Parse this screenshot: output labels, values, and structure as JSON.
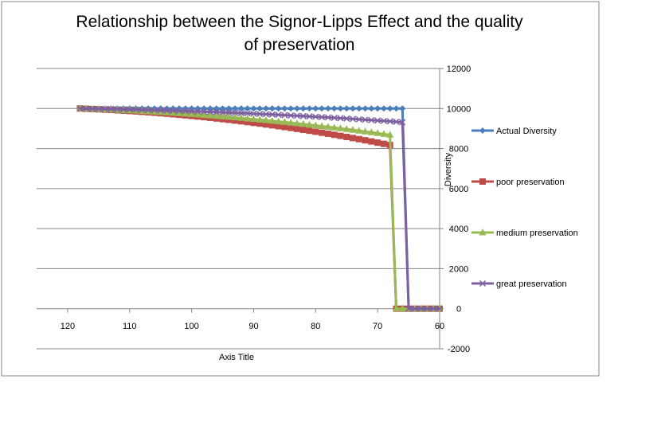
{
  "chart_data": {
    "type": "line",
    "title_line1": "Relationship between the Signor-Lipps Effect and the quality",
    "title_line2": "of preservation",
    "xlabel": "Axis Title",
    "ylabel": "Diversity",
    "xlim": [
      125,
      60
    ],
    "x_reversed": true,
    "ylim": [
      -2000,
      12000
    ],
    "x_ticks": [
      120,
      110,
      100,
      90,
      80,
      70,
      60
    ],
    "y_ticks": [
      -2000,
      0,
      2000,
      4000,
      6000,
      8000,
      10000,
      12000
    ],
    "y_axis_side": "right",
    "grid": "horizontal",
    "legend_position": "right",
    "x": [
      118,
      117,
      116,
      115,
      114,
      113,
      112,
      111,
      110,
      109,
      108,
      107,
      106,
      105,
      104,
      103,
      102,
      101,
      100,
      99,
      98,
      97,
      96,
      95,
      94,
      93,
      92,
      91,
      90,
      89,
      88,
      87,
      86,
      85,
      84,
      83,
      82,
      81,
      80,
      79,
      78,
      77,
      76,
      75,
      74,
      73,
      72,
      71,
      70,
      69,
      68,
      67,
      66,
      65,
      64,
      63,
      62,
      61,
      60
    ],
    "series": [
      {
        "name": "Actual Diversity",
        "color": "#4a7ebb",
        "marker": "diamond",
        "values": [
          10000,
          10000,
          10000,
          10000,
          10000,
          10000,
          10000,
          10000,
          10000,
          10000,
          10000,
          10000,
          10000,
          10000,
          10000,
          10000,
          10000,
          10000,
          10000,
          10000,
          10000,
          10000,
          10000,
          10000,
          10000,
          10000,
          10000,
          10000,
          10000,
          10000,
          10000,
          10000,
          10000,
          10000,
          10000,
          10000,
          10000,
          10000,
          10000,
          10000,
          10000,
          10000,
          10000,
          10000,
          10000,
          10000,
          10000,
          10000,
          10000,
          10000,
          10000,
          10000,
          10000,
          0,
          0,
          0,
          0,
          0,
          0
        ]
      },
      {
        "name": "poor preservation",
        "color": "#be4b48",
        "marker": "square",
        "values": [
          10000,
          9987,
          9974,
          9960,
          9945,
          9929,
          9912,
          9894,
          9875,
          9855,
          9834,
          9812,
          9789,
          9765,
          9740,
          9714,
          9687,
          9659,
          9630,
          9600,
          9569,
          9537,
          9504,
          9470,
          9435,
          9399,
          9362,
          9324,
          9285,
          9245,
          9204,
          9162,
          9119,
          9075,
          9030,
          8984,
          8937,
          8889,
          8840,
          8790,
          8739,
          8687,
          8634,
          8580,
          8525,
          8469,
          8412,
          8354,
          8295,
          8235,
          8174,
          0,
          0,
          0,
          0,
          0,
          0,
          0,
          0
        ]
      },
      {
        "name": "medium preservation",
        "color": "#98b954",
        "marker": "triangle",
        "values": [
          10000,
          9990,
          9979,
          9968,
          9956,
          9943,
          9930,
          9916,
          9901,
          9886,
          9870,
          9853,
          9836,
          9818,
          9799,
          9780,
          9760,
          9739,
          9718,
          9696,
          9673,
          9650,
          9626,
          9601,
          9576,
          9550,
          9523,
          9496,
          9468,
          9439,
          9410,
          9380,
          9349,
          9318,
          9286,
          9253,
          9220,
          9186,
          9151,
          9116,
          9080,
          9043,
          9006,
          8968,
          8929,
          8890,
          8850,
          8809,
          8768,
          8726,
          8683,
          0,
          0,
          0,
          0,
          0,
          0,
          0,
          0
        ]
      },
      {
        "name": "great preservation",
        "color": "#7d60a0",
        "marker": "x",
        "values": [
          10000,
          9995,
          9990,
          9985,
          9979,
          9973,
          9967,
          9960,
          9953,
          9946,
          9938,
          9930,
          9922,
          9913,
          9904,
          9895,
          9885,
          9875,
          9865,
          9854,
          9843,
          9832,
          9820,
          9808,
          9796,
          9783,
          9770,
          9757,
          9743,
          9729,
          9715,
          9700,
          9685,
          9670,
          9654,
          9638,
          9622,
          9605,
          9588,
          9571,
          9553,
          9535,
          9517,
          9498,
          9479,
          9460,
          9440,
          9420,
          9400,
          9379,
          9358,
          9337,
          9316,
          0,
          0,
          0,
          0,
          0,
          0
        ]
      }
    ]
  }
}
